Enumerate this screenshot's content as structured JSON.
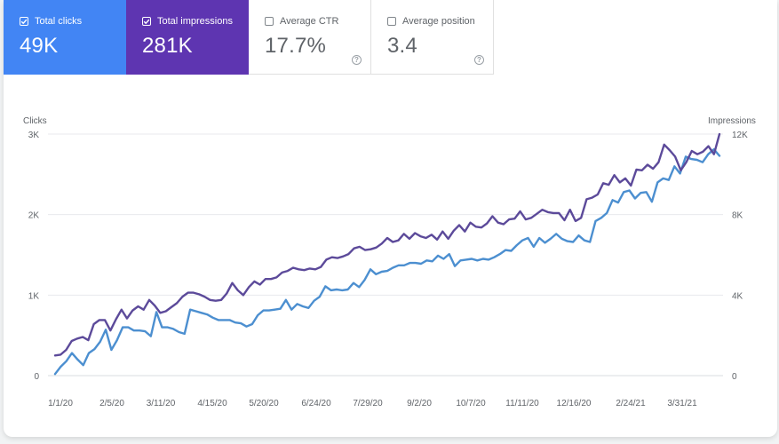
{
  "metrics": [
    {
      "key": "clicks",
      "label": "Total clicks",
      "value": "49K",
      "checked": true,
      "color": "#4285f4"
    },
    {
      "key": "impressions",
      "label": "Total impressions",
      "value": "281K",
      "checked": true,
      "color": "#5e35b1"
    },
    {
      "key": "ctr",
      "label": "Average CTR",
      "value": "17.7%",
      "checked": false
    },
    {
      "key": "position",
      "label": "Average position",
      "value": "3.4",
      "checked": false
    }
  ],
  "chart_data": {
    "type": "line",
    "left_axis_title": "Clicks",
    "right_axis_title": "Impressions",
    "left_ticks": [
      "0",
      "1K",
      "2K",
      "3K"
    ],
    "right_ticks": [
      "0",
      "4K",
      "8K",
      "12K"
    ],
    "left_ylim": [
      0,
      3000
    ],
    "right_ylim": [
      0,
      12000
    ],
    "x_tick_labels": [
      "1/1/20",
      "2/5/20",
      "3/11/20",
      "4/15/20",
      "5/20/20",
      "6/24/20",
      "7/29/20",
      "9/2/20",
      "10/7/20",
      "11/11/20",
      "12/16/20",
      "2/24/21",
      "3/31/21"
    ],
    "grid": true,
    "series": [
      {
        "name": "Total clicks",
        "axis": "left",
        "color": "#4c8fd0",
        "values": [
          20,
          110,
          180,
          280,
          200,
          130,
          280,
          330,
          420,
          570,
          320,
          440,
          600,
          600,
          560,
          560,
          550,
          490,
          790,
          600,
          600,
          580,
          540,
          520,
          820,
          800,
          780,
          760,
          720,
          690,
          690,
          690,
          660,
          650,
          610,
          640,
          750,
          810,
          810,
          820,
          830,
          940,
          820,
          890,
          860,
          840,
          930,
          980,
          1110,
          1060,
          1070,
          1060,
          1070,
          1150,
          1100,
          1190,
          1320,
          1260,
          1290,
          1300,
          1340,
          1370,
          1370,
          1400,
          1400,
          1390,
          1430,
          1420,
          1490,
          1450,
          1510,
          1360,
          1430,
          1440,
          1450,
          1430,
          1450,
          1440,
          1470,
          1510,
          1560,
          1550,
          1620,
          1680,
          1710,
          1600,
          1710,
          1650,
          1700,
          1760,
          1700,
          1670,
          1660,
          1740,
          1680,
          1660,
          1920,
          1960,
          2020,
          2180,
          2150,
          2280,
          2300,
          2200,
          2270,
          2280,
          2160,
          2400,
          2450,
          2430,
          2600,
          2510,
          2720,
          2690,
          2680,
          2650,
          2750,
          2810,
          2730
        ]
      },
      {
        "name": "Total impressions",
        "axis": "left",
        "color": "#5c4a9a",
        "values": [
          250,
          260,
          320,
          430,
          460,
          480,
          440,
          640,
          690,
          690,
          560,
          700,
          820,
          710,
          810,
          860,
          820,
          940,
          870,
          780,
          800,
          850,
          900,
          980,
          1030,
          1030,
          1010,
          980,
          940,
          930,
          940,
          1020,
          1150,
          1060,
          1000,
          1100,
          1170,
          1130,
          1200,
          1200,
          1220,
          1280,
          1300,
          1340,
          1320,
          1310,
          1330,
          1320,
          1350,
          1440,
          1470,
          1460,
          1480,
          1510,
          1580,
          1600,
          1560,
          1570,
          1590,
          1640,
          1710,
          1660,
          1680,
          1760,
          1700,
          1770,
          1730,
          1710,
          1750,
          1690,
          1790,
          1700,
          1800,
          1870,
          1790,
          1900,
          1850,
          1840,
          1890,
          1980,
          1900,
          1880,
          1940,
          1950,
          2040,
          1940,
          1960,
          2010,
          2060,
          2030,
          2020,
          2020,
          1930,
          2060,
          1920,
          1960,
          2190,
          2210,
          2250,
          2390,
          2370,
          2490,
          2400,
          2450,
          2360,
          2560,
          2550,
          2620,
          2570,
          2650,
          2870,
          2800,
          2720,
          2550,
          2650,
          2790,
          2750,
          2780,
          2850,
          2750,
          3000
        ]
      }
    ]
  }
}
